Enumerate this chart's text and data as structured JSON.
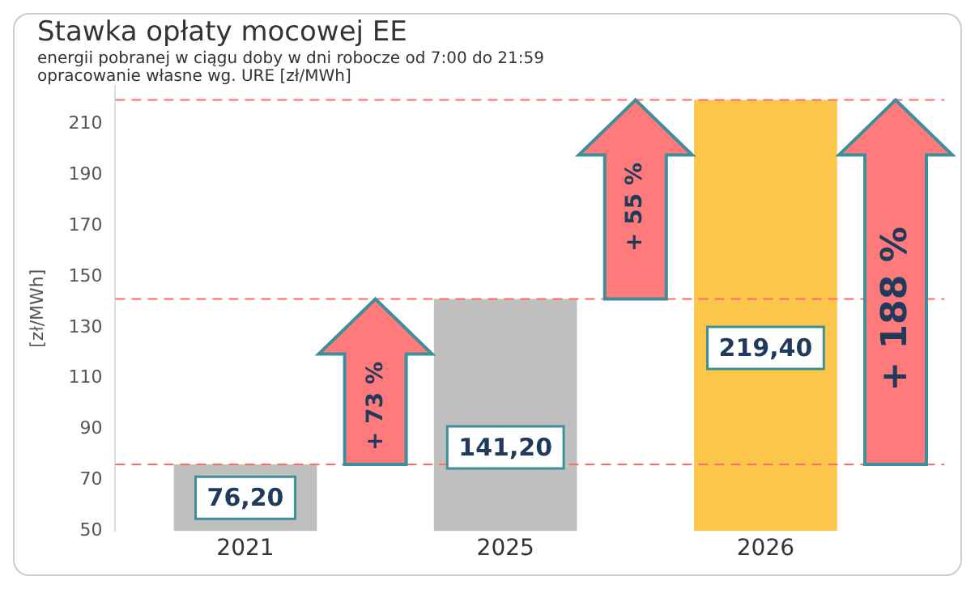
{
  "chart_data": {
    "type": "bar",
    "title": "Stawka opłaty mocowej EE",
    "subtitle": "energii pobranej w ciągu doby w dni robocze od 7:00 do 21:59",
    "ylabel": "[zł/MWh]",
    "categories": [
      "2021",
      "2025",
      "2026"
    ],
    "values": [
      76.2,
      141.2,
      219.4
    ],
    "colors": [
      "#bfbfbf",
      "#bfbfbf",
      "#fbc64a"
    ],
    "value_labels": [
      "76,20",
      "141,20",
      "219,40"
    ],
    "ylim": [
      50,
      225
    ],
    "yticks": [
      50,
      70,
      90,
      110,
      130,
      150,
      170,
      190,
      210
    ],
    "grid": false,
    "legend": false,
    "ref_lines": [
      {
        "axis": "y",
        "value": 76.2,
        "color": "#ff6b6b",
        "line_style": "dashed"
      },
      {
        "axis": "y",
        "value": 141.2,
        "color": "#ff6b6b",
        "line_style": "dashed"
      },
      {
        "axis": "y",
        "value": 219.4,
        "color": "#ff6b6b",
        "line_style": "dashed"
      }
    ],
    "annotations": [
      "opracowanie własne wg. URE [zł/MWh]",
      {
        "text": "+ 73 %",
        "y": 141.2
      },
      {
        "text": "+ 55 %",
        "y": 219.4
      },
      "+ 188 %"
    ]
  }
}
